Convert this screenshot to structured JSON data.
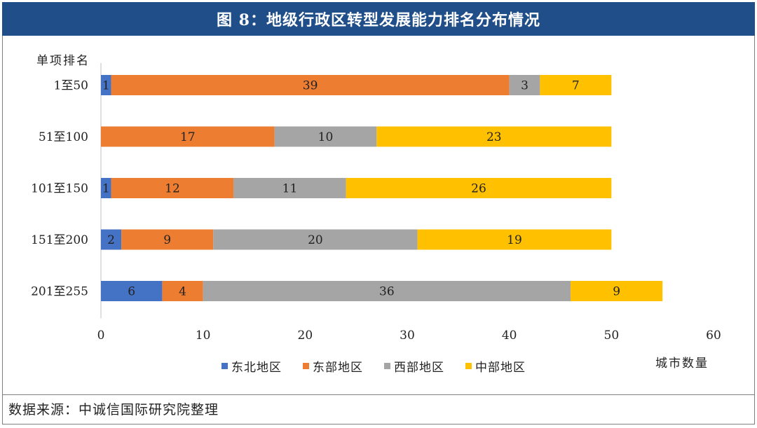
{
  "title": "图 8：地级行政区转型发展能力排名分布情况",
  "source": "数据来源：中诚信国际研究院整理",
  "chart_data": {
    "type": "bar",
    "orientation": "horizontal",
    "stacked": true,
    "ylabel": "单项排名",
    "xlabel": "城市数量",
    "categories": [
      "1至50",
      "51至100",
      "101至150",
      "151至200",
      "201至255"
    ],
    "xlim": [
      0,
      60
    ],
    "xticks": [
      0,
      10,
      20,
      30,
      40,
      50,
      60
    ],
    "legend_position": "bottom",
    "grid": false,
    "series": [
      {
        "name": "东北地区",
        "color": "#4472c4",
        "values": [
          1,
          0,
          1,
          2,
          6
        ]
      },
      {
        "name": "东部地区",
        "color": "#ed7d31",
        "values": [
          39,
          17,
          12,
          9,
          4
        ]
      },
      {
        "name": "西部地区",
        "color": "#a5a5a5",
        "values": [
          3,
          10,
          11,
          20,
          36
        ]
      },
      {
        "name": "中部地区",
        "color": "#ffc000",
        "values": [
          7,
          23,
          26,
          19,
          9
        ]
      }
    ]
  }
}
